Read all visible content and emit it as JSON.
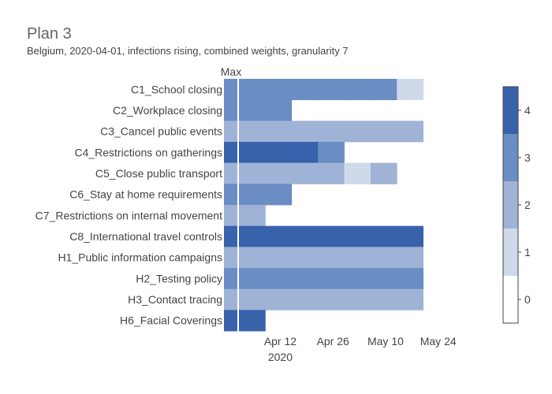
{
  "chart_data": {
    "type": "heatmap",
    "title": "Plan 3",
    "subtitle": "Belgium, 2020-04-01, infections rising, combined weights, granularity 7",
    "max_column_label": "Max",
    "x_ticks": [
      "Apr 12",
      "Apr 26",
      "May 10",
      "May 24"
    ],
    "x_tick_year": "2020",
    "x_range": [
      "2020-04-01",
      "2020-05-27"
    ],
    "bin_days": 7,
    "colorscale": [
      {
        "level": 0,
        "color": "#ffffff"
      },
      {
        "level": 1,
        "color": "#ced9ea"
      },
      {
        "level": 2,
        "color": "#9eb3d6"
      },
      {
        "level": 3,
        "color": "#6a8dc3"
      },
      {
        "level": 4,
        "color": "#3863ab"
      }
    ],
    "colorbar_ticks": [
      "0",
      "1",
      "2",
      "3",
      "4"
    ],
    "colorbar_range": [
      -0.5,
      4.5
    ],
    "series": [
      {
        "name": "C1_School closing",
        "max": 3,
        "weeks": [
          3,
          3,
          3,
          3,
          3,
          3,
          1
        ]
      },
      {
        "name": "C2_Workplace closing",
        "max": 3,
        "weeks": [
          3,
          3
        ]
      },
      {
        "name": "C3_Cancel public events",
        "max": 2,
        "weeks": [
          2,
          2,
          2,
          2,
          2,
          2,
          2
        ]
      },
      {
        "name": "C4_Restrictions on gatherings",
        "max": 4,
        "weeks": [
          4,
          4,
          4,
          3
        ]
      },
      {
        "name": "C5_Close public transport",
        "max": 2,
        "weeks": [
          2,
          2,
          2,
          2,
          1,
          2
        ]
      },
      {
        "name": "C6_Stay at home requirements",
        "max": 3,
        "weeks": [
          3,
          3
        ]
      },
      {
        "name": "C7_Restrictions on internal movement",
        "max": 2,
        "weeks": [
          2
        ]
      },
      {
        "name": "C8_International travel controls",
        "max": 4,
        "weeks": [
          4,
          4,
          4,
          4,
          4,
          4,
          4
        ]
      },
      {
        "name": "H1_Public information campaigns",
        "max": 2,
        "weeks": [
          2,
          2,
          2,
          2,
          2,
          2,
          2
        ]
      },
      {
        "name": "H2_Testing policy",
        "max": 3,
        "weeks": [
          3,
          3,
          3,
          3,
          3,
          3,
          3
        ]
      },
      {
        "name": "H3_Contact tracing",
        "max": 2,
        "weeks": [
          2,
          2,
          2,
          2,
          2,
          2,
          2
        ]
      },
      {
        "name": "H6_Facial Coverings",
        "max": 4,
        "weeks": [
          4
        ]
      }
    ]
  }
}
